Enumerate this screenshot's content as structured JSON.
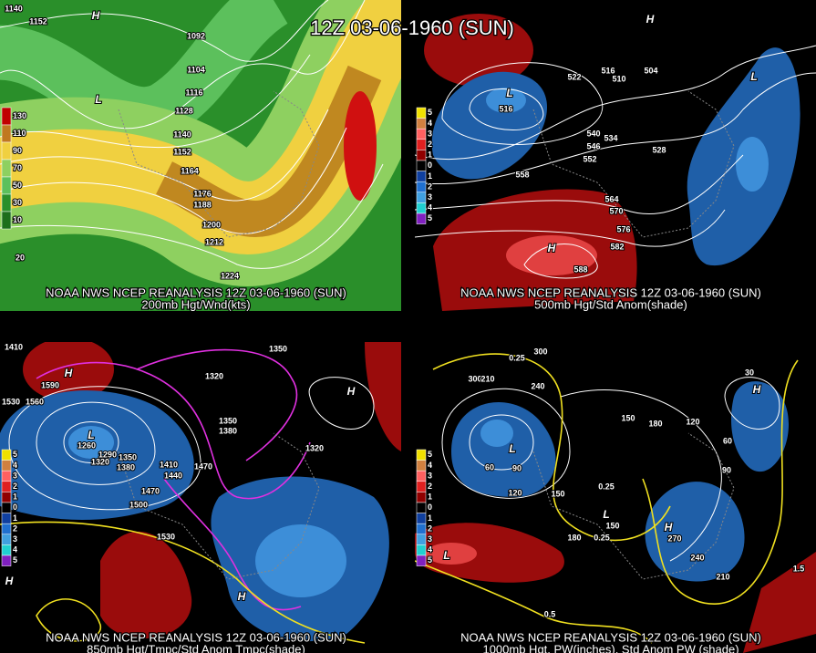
{
  "title": "12Z 03-06-1960 (SUN)",
  "panels": [
    {
      "caption": [
        "NOAA NWS NCEP REANALYSIS 12Z 03-06-1960 (SUN)",
        "200mb Hgt/Wnd(kts)"
      ],
      "legend": [
        "130",
        "110",
        "90",
        "70",
        "50",
        "30",
        "10"
      ],
      "labels": [
        "1140",
        "1152",
        "1092",
        "1104",
        "1116",
        "1128",
        "1140",
        "1152",
        "1164",
        "1176",
        "1188",
        "1200",
        "1212",
        "1224",
        "20"
      ],
      "markers": [
        "H",
        "L"
      ]
    },
    {
      "caption": [
        "NOAA NWS NCEP REANALYSIS 12Z 03-06-1960 (SUN)",
        "500mb Hgt/Std Anom(shade)"
      ],
      "legend": [
        "5",
        "4",
        "3",
        "2",
        "1",
        "0",
        "1",
        "2",
        "3",
        "4",
        "5"
      ],
      "labels": [
        "516",
        "522",
        "516",
        "510",
        "504",
        "540",
        "546",
        "534",
        "528",
        "552",
        "558",
        "564",
        "570",
        "576",
        "582",
        "588"
      ],
      "markers": [
        "H",
        "L",
        "L",
        "H"
      ]
    },
    {
      "caption": [
        "NOAA NWS NCEP REANALYSIS 12Z 03-06-1960 (SUN)",
        "850mb Hgt/Tmpc/Std Anom Tmpc(shade)"
      ],
      "legend": [
        "5",
        "4",
        "3",
        "2",
        "1",
        "0",
        "1",
        "2",
        "3",
        "4",
        "5"
      ],
      "labels": [
        "1410",
        "1590",
        "1560",
        "1530",
        "1260",
        "1290",
        "1320",
        "1350",
        "1380",
        "1410",
        "1440",
        "1470",
        "1470",
        "1500",
        "1530",
        "1350",
        "1380",
        "1320",
        "1320",
        "1350"
      ],
      "markers": [
        "L",
        "H",
        "H",
        "H",
        "H"
      ]
    },
    {
      "caption": [
        "NOAA NWS NCEP REANALYSIS 12Z 03-06-1960 (SUN)",
        "1000mb Hgt, PW(inches), Std Anom PW (shade)"
      ],
      "legend": [
        "5",
        "4",
        "3",
        "2",
        "1",
        "0",
        "1",
        "2",
        "3",
        "4",
        "5"
      ],
      "labels": [
        "0.25",
        "300",
        "300",
        "210",
        "240",
        "150",
        "180",
        "120",
        "30",
        "60",
        "90",
        "0.25",
        "150",
        "120",
        "0.25",
        "150",
        "180",
        "270",
        "240",
        "210",
        "1.5",
        "0.5",
        "90",
        "60"
      ],
      "markers": [
        "L",
        "L",
        "H",
        "H",
        "L"
      ]
    }
  ]
}
